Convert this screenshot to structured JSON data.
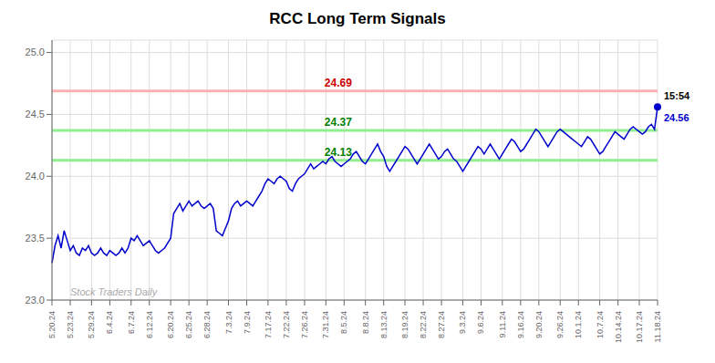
{
  "chart_data": {
    "type": "line",
    "title": "RCC Long Term Signals",
    "categories": [
      "5.20.24",
      null,
      null,
      null,
      null,
      null,
      "5.23.24",
      null,
      null,
      null,
      null,
      null,
      null,
      "5.29.24",
      null,
      null,
      null,
      null,
      null,
      "6.4.24",
      null,
      null,
      null,
      null,
      null,
      null,
      "6.7.24",
      null,
      null,
      null,
      null,
      null,
      "6.12.24",
      null,
      null,
      null,
      null,
      null,
      null,
      "6.20.24",
      null,
      null,
      null,
      null,
      null,
      "6.25.24",
      null,
      null,
      null,
      null,
      null,
      "6.28.24",
      null,
      null,
      null,
      null,
      null,
      null,
      "7.3.24",
      null,
      null,
      null,
      null,
      null,
      "7.9.24",
      null,
      null,
      null,
      null,
      null,
      null,
      "7.17.24",
      null,
      null,
      null,
      null,
      null,
      "7.22.24",
      null,
      null,
      null,
      null,
      null,
      "7.26.24",
      null,
      null,
      null,
      null,
      null,
      null,
      "7.31.24",
      null,
      null,
      null,
      null,
      null,
      "8.5.24",
      null,
      null,
      null,
      null,
      null,
      null,
      "8.8.24",
      null,
      null,
      null,
      null,
      null,
      "8.13.24",
      null,
      null,
      null,
      null,
      null,
      null,
      "8.19.24",
      null,
      null,
      null,
      null,
      null,
      "8.22.24",
      null,
      null,
      null,
      null,
      null,
      "8.27.24",
      null,
      null,
      null,
      null,
      null,
      null,
      "9.3.24",
      null,
      null,
      null,
      null,
      null,
      "9.6.24",
      null,
      null,
      null,
      null,
      null,
      null,
      "9.11.24",
      null,
      null,
      null,
      null,
      null,
      "9.16.24",
      null,
      null,
      null,
      null,
      null,
      "9.20.24",
      null,
      null,
      null,
      null,
      null,
      null,
      "9.26.24",
      null,
      null,
      null,
      null,
      null,
      "10.1.24",
      null,
      null,
      null,
      null,
      null,
      null,
      "10.7.24",
      null,
      null,
      null,
      null,
      null,
      "10.14.24",
      null,
      null,
      null,
      null,
      null,
      null,
      "10.17.24",
      null,
      null,
      null,
      null,
      null,
      "11.18.24"
    ],
    "values": [
      23.3,
      23.44,
      23.52,
      23.42,
      23.56,
      23.48,
      23.4,
      23.44,
      23.38,
      23.36,
      23.42,
      23.4,
      23.44,
      23.38,
      23.36,
      23.38,
      23.42,
      23.38,
      23.36,
      23.4,
      23.38,
      23.36,
      23.38,
      23.42,
      23.38,
      23.42,
      23.5,
      23.48,
      23.52,
      23.48,
      23.44,
      23.46,
      23.48,
      23.44,
      23.4,
      23.38,
      23.4,
      23.42,
      23.46,
      23.5,
      23.7,
      23.74,
      23.78,
      23.72,
      23.76,
      23.8,
      23.76,
      23.78,
      23.8,
      23.76,
      23.74,
      23.76,
      23.78,
      23.74,
      23.56,
      23.54,
      23.52,
      23.58,
      23.64,
      23.74,
      23.78,
      23.8,
      23.76,
      23.78,
      23.8,
      23.78,
      23.76,
      23.8,
      23.84,
      23.88,
      23.94,
      23.98,
      23.96,
      23.94,
      23.98,
      24.0,
      23.98,
      23.96,
      23.9,
      23.88,
      23.94,
      23.98,
      24.0,
      24.02,
      24.06,
      24.1,
      24.06,
      24.08,
      24.1,
      24.12,
      24.1,
      24.14,
      24.16,
      24.12,
      24.1,
      24.08,
      24.1,
      24.12,
      24.14,
      24.18,
      24.2,
      24.16,
      24.12,
      24.1,
      24.14,
      24.18,
      24.22,
      24.26,
      24.2,
      24.16,
      24.08,
      24.04,
      24.08,
      24.12,
      24.16,
      24.2,
      24.24,
      24.22,
      24.18,
      24.14,
      24.1,
      24.14,
      24.18,
      24.22,
      24.26,
      24.22,
      24.18,
      24.14,
      24.16,
      24.2,
      24.22,
      24.18,
      24.14,
      24.12,
      24.08,
      24.04,
      24.08,
      24.12,
      24.16,
      24.2,
      24.24,
      24.22,
      24.18,
      24.22,
      24.26,
      24.22,
      24.18,
      24.14,
      24.18,
      24.22,
      24.26,
      24.3,
      24.28,
      24.24,
      24.2,
      24.22,
      24.26,
      24.3,
      24.34,
      24.38,
      24.36,
      24.32,
      24.28,
      24.24,
      24.28,
      24.32,
      24.36,
      24.38,
      24.36,
      24.34,
      24.32,
      24.3,
      24.28,
      24.26,
      24.24,
      24.28,
      24.32,
      24.3,
      24.26,
      24.22,
      24.18,
      24.2,
      24.24,
      24.28,
      24.32,
      24.36,
      24.34,
      24.32,
      24.3,
      24.34,
      24.38,
      24.4,
      24.38,
      24.36,
      24.34,
      24.36,
      24.4,
      24.42,
      24.38,
      24.56
    ],
    "color": "#0000CC",
    "ylim": [
      23.0,
      25.1
    ],
    "yticks": [
      {
        "value": 23.0,
        "label": "23.0"
      },
      23.5,
      {
        "value": 24.0,
        "label": "24.0"
      },
      24.5,
      {
        "value": 25.0,
        "label": "25.0"
      }
    ],
    "grid": true,
    "hlines": [
      {
        "y": 24.69,
        "color": "#FFB0B0",
        "label": "24.69",
        "label_color": "#CC0000"
      },
      {
        "y": 24.37,
        "color": "#90EE90",
        "label": "24.37",
        "label_color": "#008000"
      },
      {
        "y": 24.13,
        "color": "#90EE90",
        "label": "24.13",
        "label_color": "#008000"
      }
    ],
    "annotations": [
      {
        "text": "15:54",
        "color": "#000000"
      },
      {
        "text": "24.56",
        "color": "#0000CC"
      }
    ],
    "watermark": {
      "text": "Stock Traders Daily",
      "color": "#AAAAAA"
    }
  }
}
